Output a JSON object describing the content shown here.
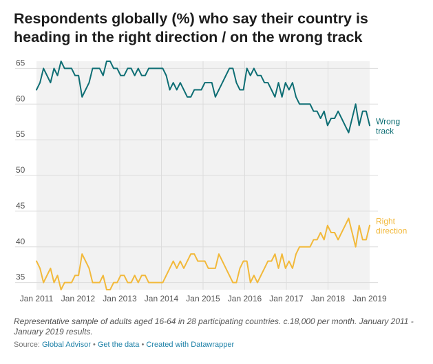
{
  "chart_data": {
    "type": "line",
    "title": "Respondents globally (%) who say their country is heading in the right direction / on the wrong track",
    "xlabel": "",
    "ylabel": "",
    "ylim": [
      34,
      66
    ],
    "yticks": [
      35,
      40,
      45,
      50,
      55,
      60,
      65
    ],
    "x_tick_labels": [
      "Jan 2011",
      "Jan 2012",
      "Jan 2013",
      "Jan 2014",
      "Jan 2015",
      "Jan 2016",
      "Jan 2017",
      "Jan 2018",
      "Jan 2019"
    ],
    "x_start": "Jan 2011",
    "x_end": "Jan 2019",
    "series": [
      {
        "name": "Wrong track",
        "label_lines": [
          "Wrong",
          "track"
        ],
        "color": "#0e6e74",
        "values": [
          62,
          63,
          65,
          64,
          63,
          65,
          64,
          66,
          65,
          65,
          65,
          64,
          64,
          61,
          62,
          63,
          65,
          65,
          65,
          64,
          66,
          66,
          65,
          65,
          64,
          64,
          65,
          65,
          64,
          65,
          64,
          64,
          65,
          65,
          65,
          65,
          65,
          64,
          62,
          63,
          62,
          63,
          62,
          61,
          61,
          62,
          62,
          62,
          63,
          63,
          63,
          61,
          62,
          63,
          64,
          65,
          65,
          63,
          62,
          62,
          65,
          64,
          65,
          64,
          64,
          63,
          63,
          62,
          61,
          63,
          61,
          63,
          62,
          63,
          61,
          60,
          60,
          60,
          60,
          59,
          59,
          58,
          59,
          57,
          58,
          58,
          59,
          58,
          57,
          56,
          58,
          60,
          57,
          59,
          59,
          57
        ]
      },
      {
        "name": "Right direction",
        "label_lines": [
          "Right",
          "direction"
        ],
        "color": "#f2b93b",
        "values": [
          38,
          37,
          35,
          36,
          37,
          35,
          36,
          34,
          35,
          35,
          35,
          36,
          36,
          39,
          38,
          37,
          35,
          35,
          35,
          36,
          34,
          34,
          35,
          35,
          36,
          36,
          35,
          35,
          36,
          35,
          36,
          36,
          35,
          35,
          35,
          35,
          35,
          36,
          37,
          38,
          37,
          38,
          37,
          38,
          39,
          39,
          38,
          38,
          38,
          37,
          37,
          37,
          39,
          38,
          37,
          36,
          35,
          35,
          37,
          38,
          38,
          35,
          36,
          35,
          36,
          37,
          38,
          38,
          39,
          37,
          39,
          37,
          38,
          37,
          39,
          40,
          40,
          40,
          40,
          41,
          41,
          42,
          41,
          43,
          42,
          42,
          41,
          42,
          43,
          44,
          42,
          40,
          43,
          41,
          41,
          43
        ]
      }
    ]
  },
  "footer": {
    "note": "Representative sample of adults aged 16-64 in 28 participating countries. c.18,000 per month. January 2011 - January 2019 results.",
    "source_prefix": "Source: ",
    "source_name": "Global Advisor",
    "separator_1": " • ",
    "get_data": "Get the data",
    "separator_2": " • ",
    "created_with": "Created with Datawrapper"
  }
}
